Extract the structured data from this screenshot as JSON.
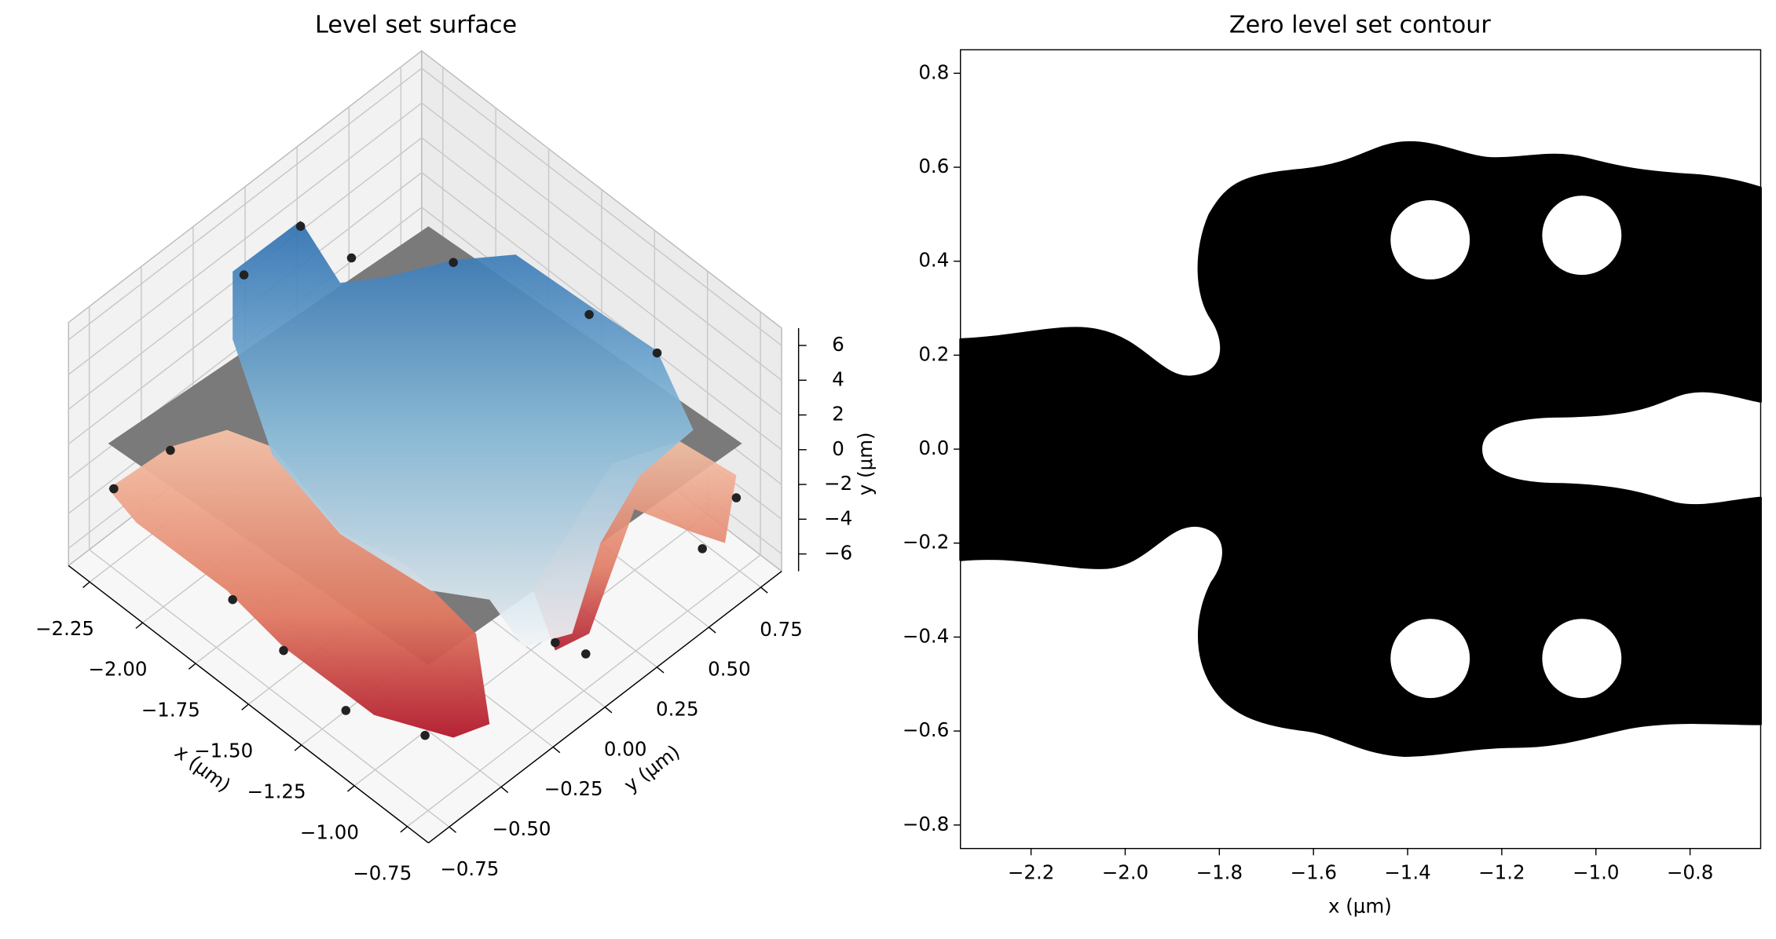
{
  "chart_data": [
    {
      "type": "surface3d",
      "title": "Level set surface",
      "xlabel": "x (μm)",
      "ylabel": "y (μm)",
      "zlabel": "y (μm)",
      "xlim": [
        -2.35,
        -0.65
      ],
      "ylim": [
        -0.85,
        0.85
      ],
      "zlim": [
        -7,
        7
      ],
      "xticks": [
        {
          "value": -2.25,
          "label": "−2.25"
        },
        {
          "value": -2.0,
          "label": "−2.00"
        },
        {
          "value": -1.75,
          "label": "−1.75"
        },
        {
          "value": -1.5,
          "label": "−1.50"
        },
        {
          "value": -1.25,
          "label": "−1.25"
        },
        {
          "value": -1.0,
          "label": "−1.00"
        },
        {
          "value": -0.75,
          "label": "−0.75"
        }
      ],
      "yticks": [
        0.75,
        {
          "value": 0.5,
          "label": "0.50"
        },
        0.25,
        {
          "value": 0,
          "label": "0.00"
        },
        {
          "value": -0.25,
          "label": "−0.25"
        },
        {
          "value": -0.5,
          "label": "−0.50"
        },
        {
          "value": -0.75,
          "label": "−0.75"
        }
      ],
      "zticks": [
        6,
        4,
        2,
        0,
        {
          "value": -2,
          "label": "−2"
        },
        {
          "value": -4,
          "label": "−4"
        },
        {
          "value": -6,
          "label": "−6"
        }
      ]
    },
    {
      "type": "contour",
      "title": "Zero level set contour",
      "xlabel": "x (μm)",
      "xlim": [
        -2.35,
        -0.65
      ],
      "ylim": [
        -0.85,
        0.85
      ],
      "xticks": [
        {
          "value": -2.2,
          "label": "−2.2"
        },
        {
          "value": -2.0,
          "label": "−2.0"
        },
        {
          "value": -1.8,
          "label": "−1.8"
        },
        {
          "value": -1.6,
          "label": "−1.6"
        },
        {
          "value": -1.4,
          "label": "−1.4"
        },
        {
          "value": -1.2,
          "label": "−1.2"
        },
        {
          "value": -1.0,
          "label": "−1.0"
        },
        {
          "value": -0.8,
          "label": "−0.8"
        }
      ],
      "yticks": [
        0.8,
        0.6,
        0.4,
        0.2,
        {
          "value": 0,
          "label": "0.0"
        },
        {
          "value": -0.2,
          "label": "−0.2"
        },
        {
          "value": -0.4,
          "label": "−0.4"
        },
        {
          "value": -0.6,
          "label": "−0.6"
        },
        {
          "value": -0.8,
          "label": "−0.8"
        }
      ]
    }
  ]
}
